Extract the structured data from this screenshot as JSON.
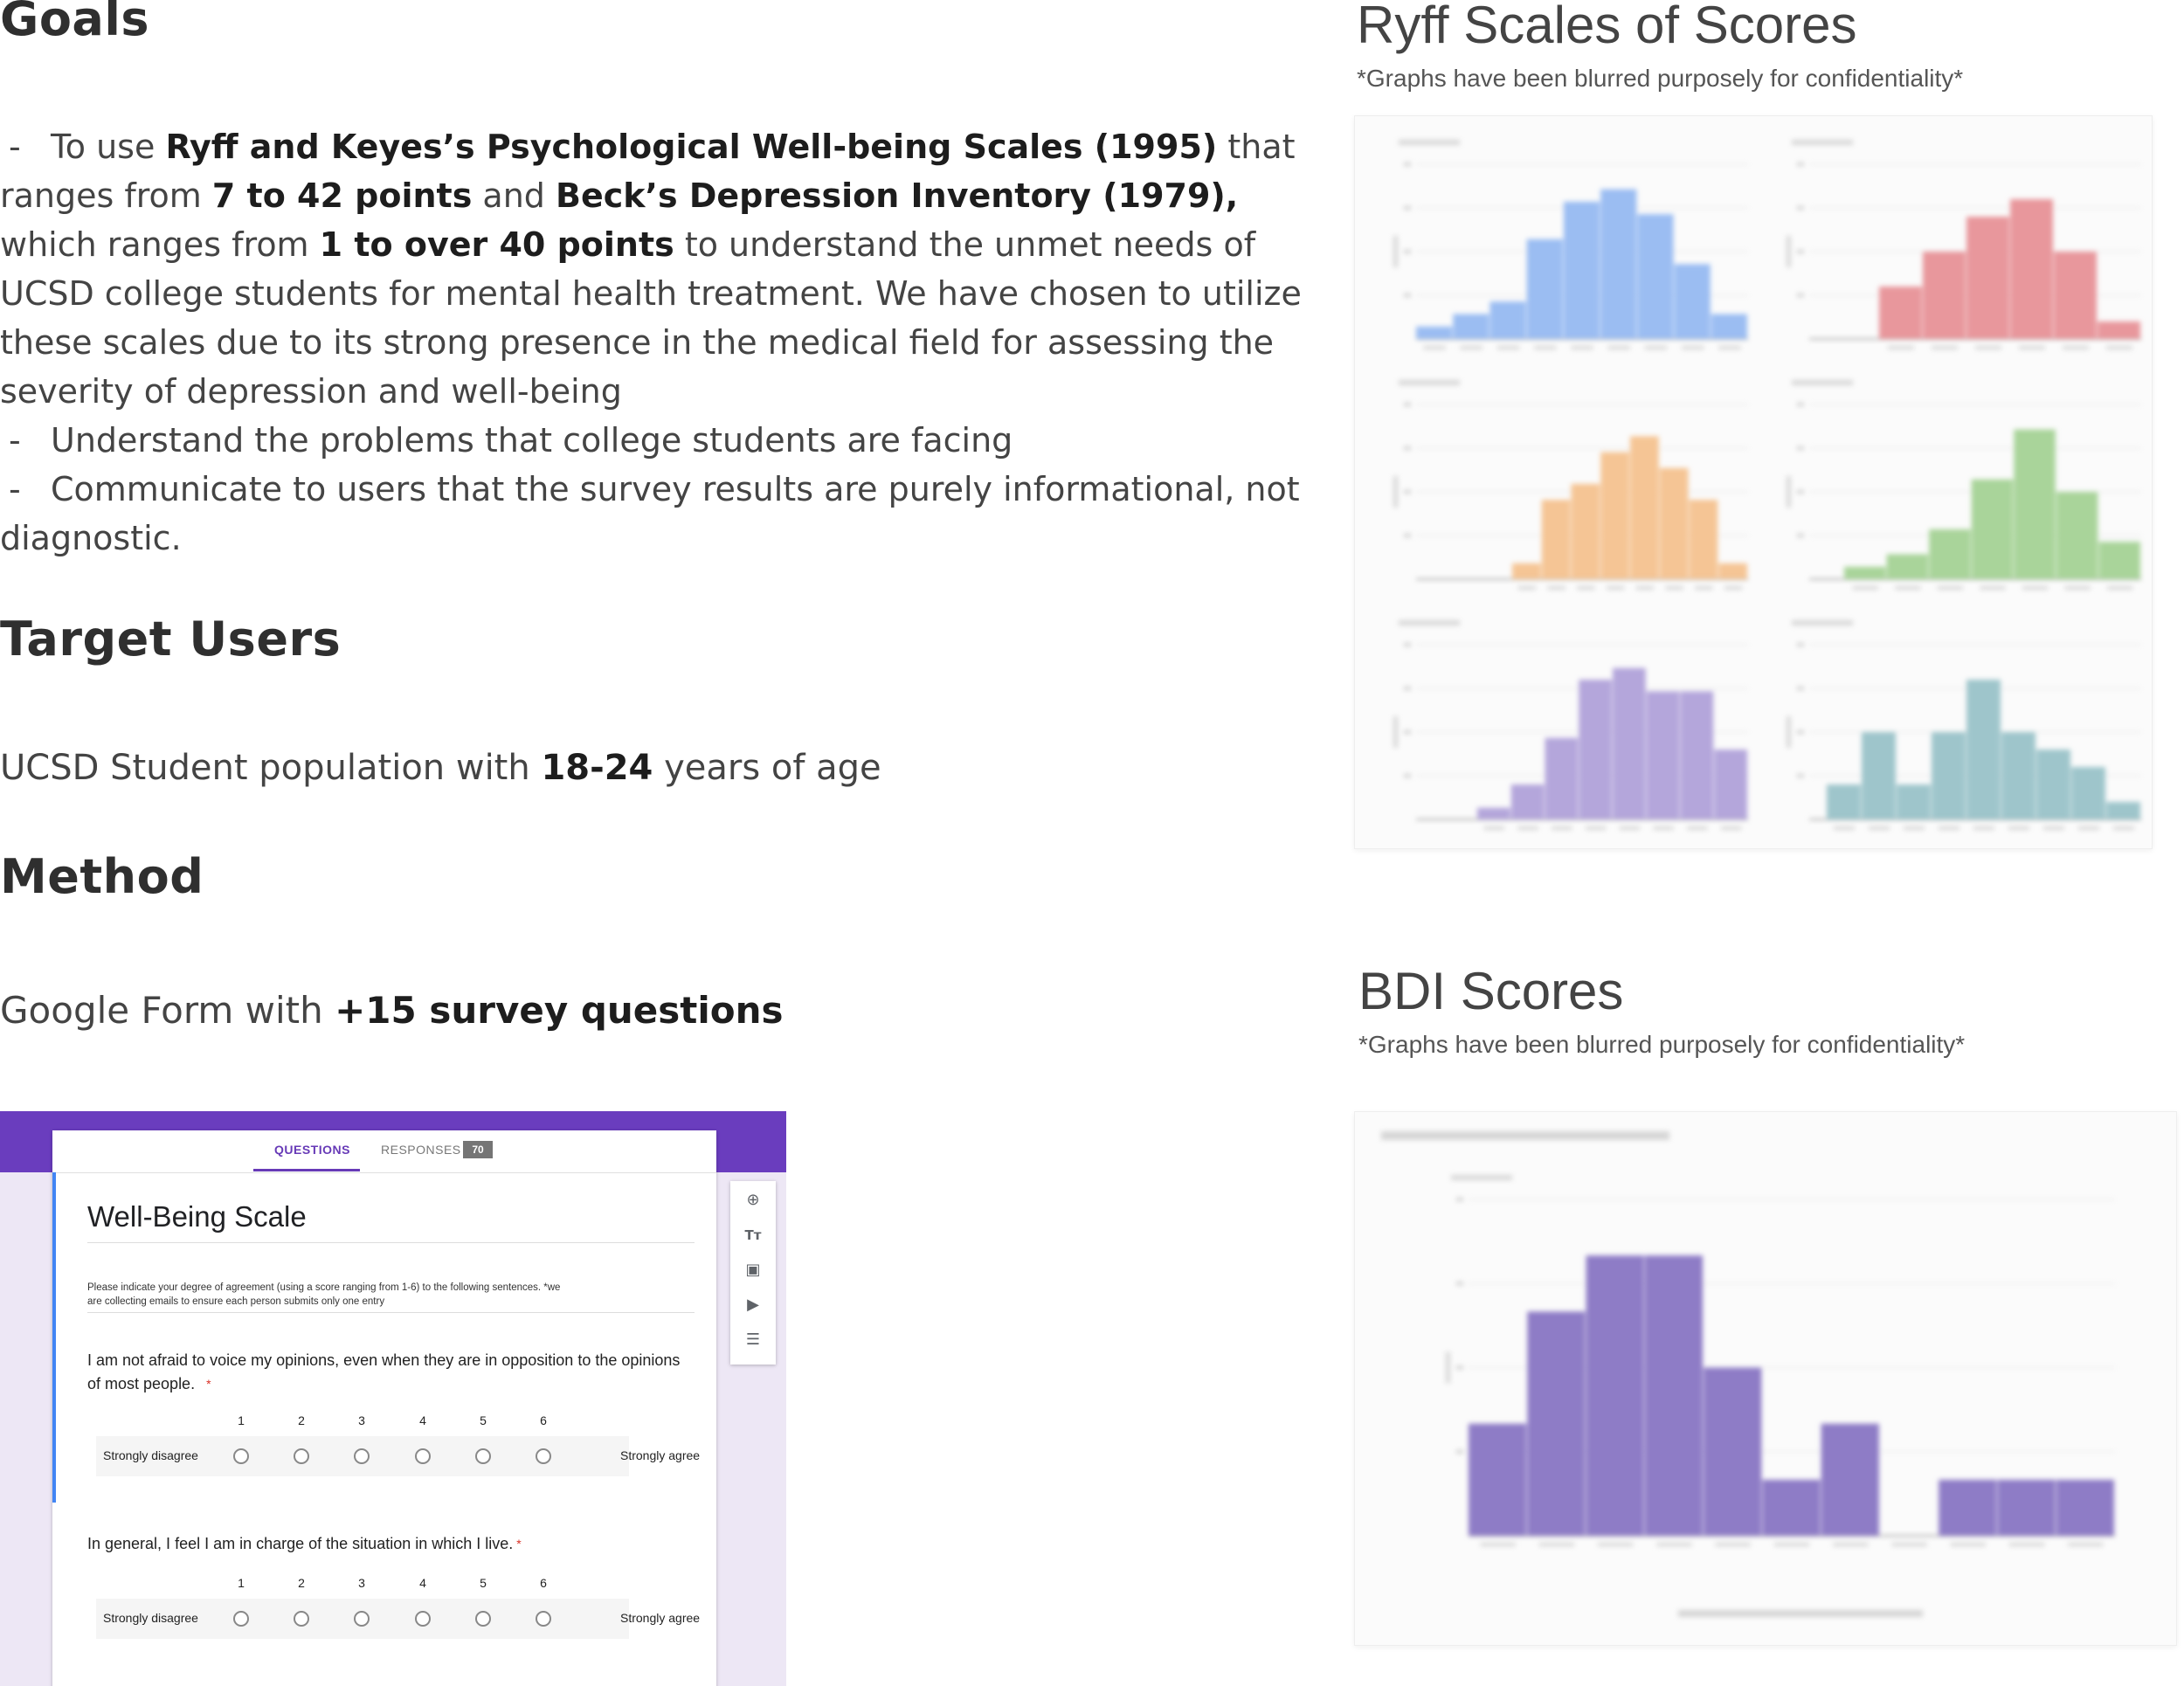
{
  "goals": {
    "heading": "Goals",
    "p1_dash": "-",
    "p1_a": "To use ",
    "p1_b": "Ryff and Keyes’s Psychological Well-being Scales (1995)",
    "p1_c": " that ranges from ",
    "p1_d": "7 to 42 points",
    "p1_e": " and ",
    "p1_f": "Beck’s Depression Inventory (1979),",
    "p1_g": " which ranges from ",
    "p1_h": "1 to over 40 points",
    "p1_i": " to understand the unmet needs of UCSD college students for mental health treatment. We have chosen to utilize these scales due to its strong presence in the medical field for assessing the severity of depression and well-being",
    "p2_dash": "-",
    "p2": "Understand the problems that college students are facing",
    "p3_dash": "-",
    "p3": "Communicate to users that the survey results are purely informational, not diagnostic."
  },
  "target_users": {
    "heading": "Target Users",
    "text_a": "UCSD Student population with ",
    "text_b": "18-24",
    "text_c": " years of age"
  },
  "method": {
    "heading": "Method",
    "text_a": "Google Form with ",
    "text_b": "+15 survey questions"
  },
  "ryff": {
    "title": "Ryff Scales of Scores",
    "note": "*Graphs have been blurred purposely for confidentiality*"
  },
  "bdi": {
    "title": "BDI Scores",
    "note": "*Graphs have been blurred purposely for confidentiality*"
  },
  "colors": {
    "blue": "#9bbdf2",
    "red": "#e8979c",
    "orange": "#f5c595",
    "green": "#a9d49a",
    "lavender": "#b4a6db",
    "teal": "#9ec5cb",
    "purple": "#8e7cc6",
    "form_band": "#6a3dbe"
  },
  "form": {
    "tab_questions": "QUESTIONS",
    "tab_responses": "RESPONSES",
    "responses_count": "70",
    "title": "Well-Being Scale",
    "description": "Please indicate your degree of agreement (using a score ranging from 1-6) to the following sentences. *we are collecting emails to ensure each person submits only one entry",
    "q1": "I am not afraid to voice my opinions, even when they are in opposition to the opinions of most people.",
    "q2": "In general, I feel I am in charge of the situation in which I live.",
    "required_mark": "*",
    "scale": [
      "1",
      "2",
      "3",
      "4",
      "5",
      "6"
    ],
    "low_label": "Strongly disagree",
    "high_label": "Strongly agree",
    "toolbar_icons": [
      "add-question-icon",
      "title-icon",
      "image-icon",
      "video-icon",
      "section-icon"
    ]
  },
  "chart_data": [
    {
      "type": "bar",
      "values": [
        1,
        2,
        3,
        8,
        11,
        12,
        10,
        6,
        2
      ]
    },
    {
      "type": "bar",
      "values": [
        3,
        5,
        7,
        8,
        5,
        1
      ]
    },
    {
      "type": "bar",
      "values": [
        1,
        5,
        6,
        8,
        9,
        7,
        5,
        1
      ]
    },
    {
      "type": "bar",
      "values": [
        1,
        2,
        4,
        8,
        12,
        7,
        3
      ]
    },
    {
      "type": "bar",
      "values": [
        1,
        3,
        7,
        12,
        13,
        11,
        11,
        6
      ]
    },
    {
      "type": "bar",
      "values": [
        2,
        5,
        2,
        5,
        8,
        5,
        4,
        3,
        1
      ]
    },
    {
      "type": "bar",
      "values": [
        2,
        4,
        5,
        5,
        3,
        1,
        2,
        0,
        1,
        1,
        1
      ]
    }
  ]
}
